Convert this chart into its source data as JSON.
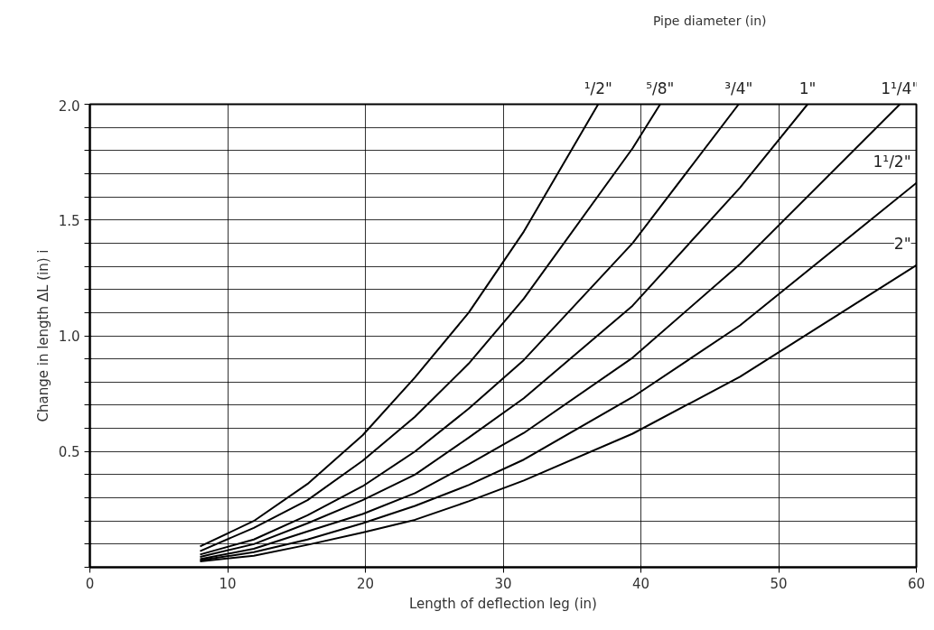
{
  "chart_data": {
    "type": "line",
    "xlabel": "Length of deflection leg (in)",
    "ylabel": "Change in length ΔL (in) i",
    "legend_title": "Pipe diameter (in)",
    "legend": false,
    "grid": true,
    "line_style": "solid",
    "xlim": [
      0,
      60
    ],
    "xticks": [
      0,
      10,
      20,
      30,
      40,
      50,
      60
    ],
    "ylim": [
      0,
      2
    ],
    "yticks": [
      {
        "value": 2,
        "label": "2.0"
      },
      {
        "value": 1.9,
        "label": null
      },
      {
        "value": 1.8,
        "label": null
      },
      {
        "value": 1.7,
        "label": null
      },
      {
        "value": 1.6,
        "label": null
      },
      {
        "value": 1.5,
        "label": "1.5"
      },
      {
        "value": 1.4,
        "label": null
      },
      {
        "value": 1.3,
        "label": null
      },
      {
        "value": 1.2,
        "label": null
      },
      {
        "value": 1.1,
        "label": null
      },
      {
        "value": 1,
        "label": "1.0"
      },
      {
        "value": 0.9,
        "label": null
      },
      {
        "value": 0.8,
        "label": null
      },
      {
        "value": 0.7,
        "label": null
      },
      {
        "value": 0.6,
        "label": null
      },
      {
        "value": 0.5,
        "label": "0.5"
      },
      {
        "value": 0.4,
        "label": null
      },
      {
        "value": 0.3,
        "label": null
      },
      {
        "value": 0.2,
        "label": null
      },
      {
        "value": 0.1,
        "label": null
      },
      {
        "value": 0,
        "label": null
      }
    ],
    "series": [
      {
        "name": "¹/2\"",
        "color": "#000000",
        "x": [
          8,
          11.9,
          15.8,
          19.8,
          23.6,
          27.5,
          31.5,
          36.9
        ],
        "values": [
          0.09,
          0.2,
          0.36,
          0.57,
          0.82,
          1.1,
          1.45,
          2.0
        ]
      },
      {
        "name": "⁵/8\"",
        "color": "#000000",
        "x": [
          8,
          11.9,
          15.8,
          19.8,
          23.6,
          27.5,
          31.5,
          39.4,
          41.4
        ],
        "values": [
          0.07,
          0.17,
          0.29,
          0.46,
          0.65,
          0.88,
          1.16,
          1.81,
          2.0
        ]
      },
      {
        "name": "³/4\"",
        "color": "#000000",
        "x": [
          8,
          11.9,
          15.8,
          19.8,
          23.6,
          27.5,
          31.5,
          39.4,
          47.1
        ],
        "values": [
          0.055,
          0.12,
          0.225,
          0.35,
          0.5,
          0.685,
          0.895,
          1.4,
          2.0
        ]
      },
      {
        "name": "1\"",
        "color": "#000000",
        "x": [
          8,
          11.9,
          15.8,
          19.8,
          23.6,
          27.5,
          31.5,
          39.4,
          47.2,
          52.1
        ],
        "values": [
          0.045,
          0.1,
          0.19,
          0.29,
          0.4,
          0.56,
          0.73,
          1.13,
          1.64,
          2.0
        ]
      },
      {
        "name": "1¹/4\"",
        "color": "#000000",
        "x": [
          8,
          11.9,
          15.8,
          19.8,
          23.6,
          27.5,
          31.5,
          39.4,
          47.2,
          58.8
        ],
        "values": [
          0.035,
          0.08,
          0.155,
          0.23,
          0.32,
          0.445,
          0.58,
          0.905,
          1.31,
          2.0
        ]
      },
      {
        "name": "1¹/2\"",
        "color": "#000000",
        "x": [
          8,
          11.9,
          15.8,
          19.8,
          23.6,
          27.5,
          31.5,
          39.4,
          47.2,
          60
        ],
        "values": [
          0.03,
          0.065,
          0.12,
          0.19,
          0.265,
          0.355,
          0.465,
          0.735,
          1.045,
          1.66
        ]
      },
      {
        "name": "2\"",
        "color": "#000000",
        "x": [
          8,
          11.9,
          15.8,
          19.8,
          23.6,
          27.5,
          31.5,
          39.4,
          47.2,
          60
        ],
        "values": [
          0.025,
          0.05,
          0.097,
          0.15,
          0.205,
          0.285,
          0.375,
          0.577,
          0.823,
          1.305
        ]
      }
    ]
  }
}
